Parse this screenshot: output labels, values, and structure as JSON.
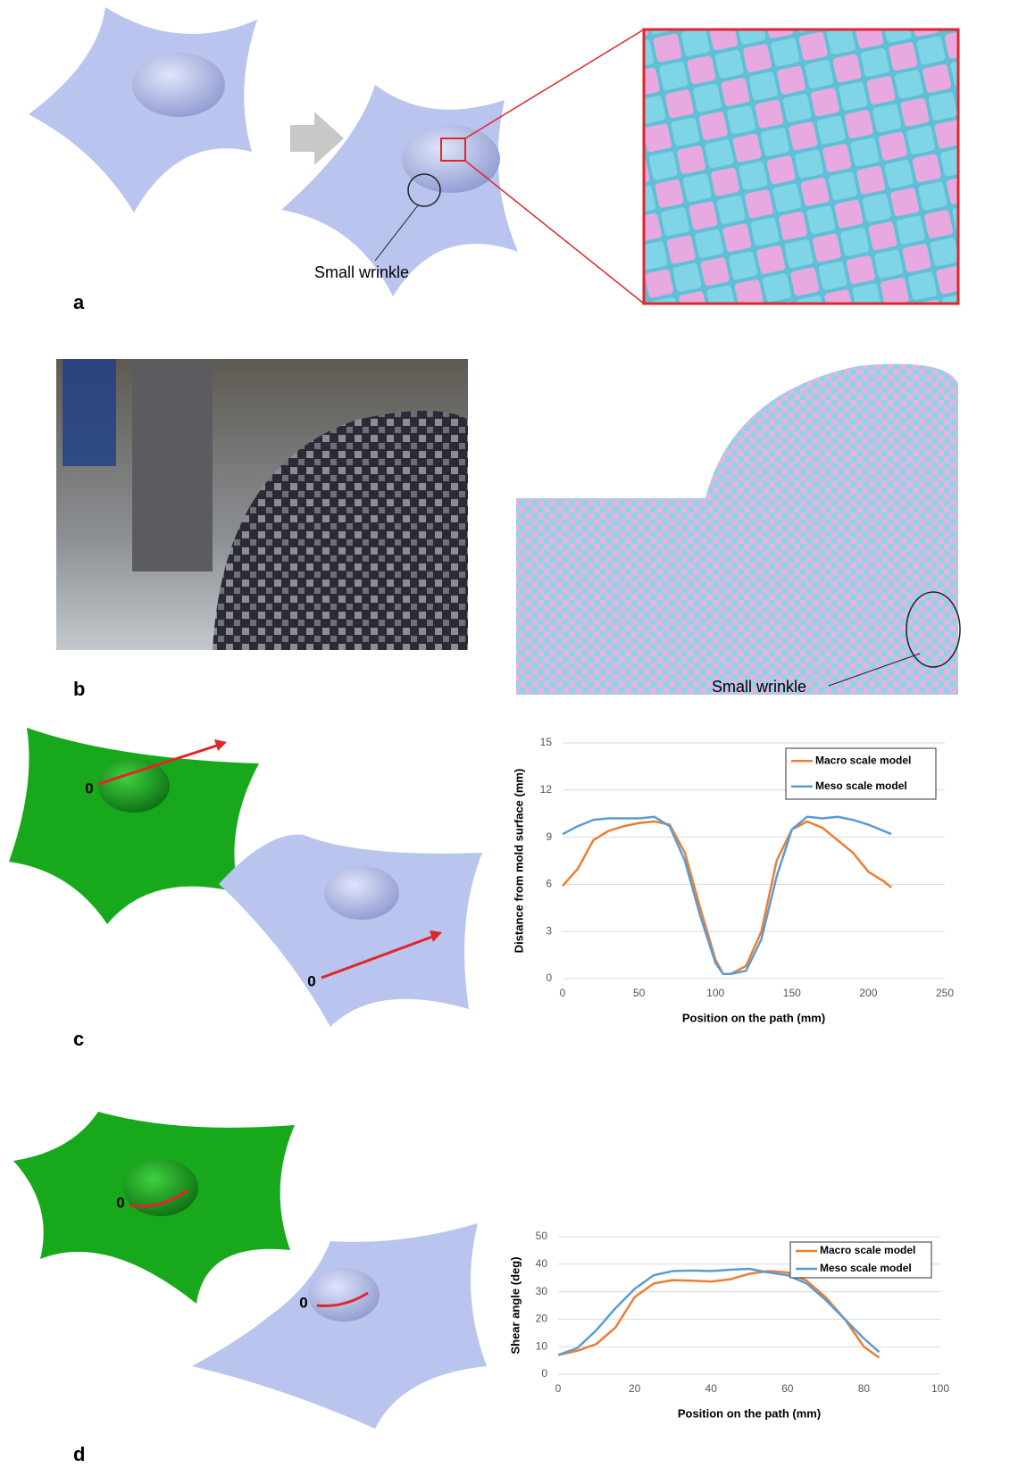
{
  "figure": {
    "panel_labels": [
      "a",
      "b",
      "c",
      "d"
    ],
    "annotations": [
      "Small wrinkle",
      "Small wrinkle",
      "0",
      "0",
      "0",
      "0"
    ]
  },
  "chart_data": [
    {
      "type": "line",
      "xlabel": "Position on the path (mm)",
      "ylabel": "Distance from mold surface (mm)",
      "x": [
        0,
        10,
        20,
        30,
        40,
        50,
        60,
        70,
        80,
        90,
        100,
        105,
        110,
        120,
        130,
        140,
        150,
        160,
        170,
        180,
        190,
        200,
        210,
        215
      ],
      "series": [
        {
          "name": "Macro scale model",
          "color": "#ed7d31",
          "values": [
            5.9,
            7,
            8.8,
            9.4,
            9.7,
            9.9,
            10,
            9.8,
            8,
            4.5,
            1.2,
            0.3,
            0.3,
            0.8,
            3,
            7.5,
            9.5,
            10,
            9.6,
            8.8,
            8,
            6.8,
            6.2,
            5.8
          ]
        },
        {
          "name": "Meso scale model",
          "color": "#5b9bd5",
          "values": [
            9.2,
            9.7,
            10.1,
            10.2,
            10.2,
            10.2,
            10.3,
            9.7,
            7.5,
            4,
            1,
            0.3,
            0.3,
            0.5,
            2.5,
            6.5,
            9.5,
            10.3,
            10.2,
            10.3,
            10.1,
            9.8,
            9.4,
            9.2
          ]
        }
      ],
      "xlim": [
        0,
        250
      ],
      "xticks": [
        0,
        50,
        100,
        150,
        200,
        250
      ],
      "ylim": [
        0,
        15
      ],
      "yticks": [
        0,
        3,
        6,
        9,
        12,
        15
      ],
      "grid": true,
      "legend": "upper right"
    },
    {
      "type": "line",
      "xlabel": "Position on the path (mm)",
      "ylabel": "Shear angle (deg)",
      "x": [
        0,
        5,
        10,
        15,
        20,
        25,
        30,
        35,
        40,
        45,
        50,
        55,
        60,
        65,
        70,
        75,
        80,
        84
      ],
      "series": [
        {
          "name": "Macro scale model",
          "color": "#ed7d31",
          "values": [
            7,
            8.5,
            11,
            17,
            28,
            33,
            34.2,
            34,
            33.7,
            34.5,
            36.5,
            37.5,
            37,
            34,
            28,
            20,
            10,
            6
          ]
        },
        {
          "name": "Meso scale model",
          "color": "#5b9bd5",
          "values": [
            7,
            9.5,
            16,
            24,
            31,
            36,
            37.5,
            37.7,
            37.5,
            38,
            38.3,
            37,
            36,
            33,
            27,
            20,
            13,
            8
          ]
        }
      ],
      "xlim": [
        0,
        100
      ],
      "xticks": [
        0,
        20,
        40,
        60,
        80,
        100
      ],
      "ylim": [
        0,
        50
      ],
      "yticks": [
        0,
        10,
        20,
        30,
        40,
        50
      ],
      "grid": true,
      "legend": "upper right"
    }
  ]
}
